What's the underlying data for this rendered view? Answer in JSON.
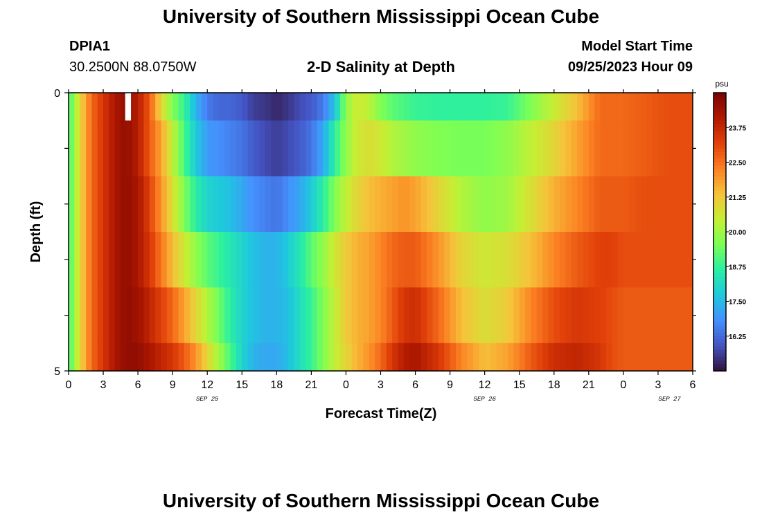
{
  "page": {
    "title_top": "University of Southern Mississippi Ocean Cube",
    "title_bottom": "University of Southern Mississippi Ocean Cube",
    "station_id": "DPIA1",
    "station_coords": "30.2500N  88.0750W",
    "plot_title": "2-D Salinity at Depth",
    "model_start_label": "Model Start Time",
    "model_start_value": "09/25/2023 Hour 09"
  },
  "chart_data": {
    "type": "heatmap",
    "title": "2-D Salinity at Depth",
    "xlabel": "Forecast Time(Z)",
    "ylabel": "Depth (ft)",
    "x_hours_from_sep25_00z": [
      0,
      54
    ],
    "x_tick_labels": [
      "0",
      "3",
      "6",
      "9",
      "12",
      "15",
      "18",
      "21",
      "0",
      "3",
      "6",
      "9",
      "12",
      "15",
      "18",
      "21",
      "0",
      "3",
      "6"
    ],
    "date_labels": [
      "SEP 25",
      "SEP 26",
      "SEP 27"
    ],
    "y_tick_labels": [
      "0",
      "5"
    ],
    "ylim": [
      0,
      5
    ],
    "depth_levels_ft": [
      0.25,
      0.75,
      1.25,
      1.75,
      2.25,
      2.75,
      3.25,
      3.75,
      4.25,
      4.75
    ],
    "colorbar": {
      "units": "psu",
      "range": [
        15.0,
        25.0
      ],
      "tick_labels": [
        "23.75",
        "22.50",
        "21.25",
        "20.00",
        "18.75",
        "17.50",
        "16.25"
      ],
      "tick_values": [
        23.75,
        22.5,
        21.25,
        20.0,
        18.75,
        17.5,
        16.25
      ]
    },
    "salinity_profiles_psu": {
      "hours": [
        0,
        1,
        2,
        3,
        4,
        5,
        6,
        7,
        8,
        9,
        10,
        11,
        12,
        13,
        14,
        15,
        16,
        17,
        18,
        19,
        20,
        21,
        22,
        23,
        24,
        25,
        26,
        27,
        28,
        29,
        30,
        32,
        34,
        36,
        38,
        40,
        42,
        44,
        46,
        47,
        48,
        50,
        52,
        54
      ],
      "depth_band_0_to_0_5ft": [
        18.8,
        21.0,
        22.6,
        23.4,
        24.2,
        24.6,
        24.0,
        22.8,
        21.0,
        19.6,
        18.8,
        17.4,
        16.5,
        16.2,
        16.2,
        16.0,
        15.6,
        15.5,
        15.3,
        15.5,
        15.8,
        16.0,
        16.5,
        17.6,
        19.8,
        20.6,
        20.3,
        19.6,
        19.2,
        19.0,
        18.8,
        18.7,
        18.7,
        18.7,
        18.8,
        19.6,
        20.5,
        21.4,
        22.6,
        22.6,
        22.6,
        22.8,
        23.0,
        23.0
      ],
      "depth_band_0_5_to_1_5ft": [
        18.8,
        21.0,
        22.6,
        23.4,
        24.2,
        24.6,
        24.0,
        22.8,
        21.8,
        20.4,
        19.0,
        17.8,
        17.0,
        16.8,
        16.6,
        16.4,
        16.0,
        15.8,
        15.6,
        15.8,
        16.0,
        16.4,
        17.2,
        18.6,
        19.8,
        20.6,
        20.8,
        20.6,
        20.2,
        20.0,
        19.8,
        19.6,
        19.5,
        19.5,
        19.8,
        20.4,
        21.0,
        21.8,
        22.6,
        22.6,
        22.6,
        22.8,
        23.0,
        23.0
      ],
      "depth_band_1_5_to_2_5ft": [
        18.8,
        21.0,
        22.6,
        23.4,
        24.2,
        24.6,
        24.2,
        23.2,
        22.0,
        20.8,
        19.6,
        18.6,
        18.0,
        17.8,
        17.6,
        17.2,
        16.8,
        16.6,
        16.4,
        16.8,
        17.2,
        17.8,
        18.6,
        19.6,
        20.4,
        21.0,
        21.4,
        21.6,
        21.8,
        22.0,
        21.8,
        21.0,
        20.2,
        19.8,
        20.0,
        20.8,
        21.6,
        22.2,
        22.8,
        22.8,
        22.8,
        23.0,
        23.0,
        23.0
      ],
      "depth_band_2_5_to_3_5ft": [
        18.8,
        21.0,
        22.6,
        23.4,
        24.2,
        24.6,
        24.2,
        23.4,
        22.4,
        21.4,
        20.6,
        19.8,
        19.2,
        18.8,
        18.4,
        18.0,
        17.6,
        17.4,
        17.4,
        17.8,
        18.4,
        19.2,
        19.8,
        20.6,
        21.2,
        21.6,
        21.8,
        22.2,
        22.6,
        22.8,
        22.8,
        22.0,
        21.0,
        20.6,
        20.8,
        21.4,
        22.2,
        22.8,
        23.2,
        23.2,
        23.0,
        23.0,
        23.0,
        23.0
      ],
      "depth_band_3_5_to_4_5ft": [
        18.8,
        21.0,
        22.6,
        23.4,
        24.2,
        24.6,
        24.4,
        23.8,
        23.2,
        22.6,
        21.8,
        21.0,
        20.2,
        19.4,
        18.6,
        18.0,
        17.6,
        17.4,
        17.4,
        17.6,
        18.2,
        18.8,
        19.6,
        20.4,
        21.2,
        21.6,
        21.8,
        22.2,
        22.8,
        23.4,
        23.6,
        22.6,
        21.4,
        20.8,
        21.2,
        22.2,
        23.0,
        23.4,
        23.2,
        23.0,
        22.8,
        22.8,
        22.8,
        22.8
      ],
      "depth_band_4_5_to_5ft": [
        18.8,
        21.0,
        22.6,
        23.4,
        24.2,
        24.6,
        24.6,
        24.2,
        23.8,
        23.4,
        22.8,
        22.0,
        21.0,
        20.0,
        19.0,
        18.0,
        17.4,
        17.2,
        17.2,
        17.6,
        18.2,
        18.8,
        19.6,
        20.4,
        21.0,
        21.6,
        22.0,
        22.6,
        23.4,
        24.0,
        24.2,
        23.4,
        22.2,
        21.4,
        21.8,
        22.8,
        23.6,
        23.8,
        23.4,
        23.0,
        22.8,
        22.8,
        22.8,
        22.8
      ]
    },
    "colors": {
      "scale": [
        "#30123b",
        "#4454c4",
        "#4490fe",
        "#1fc8de",
        "#29efa2",
        "#7cff55",
        "#c5ef33",
        "#f6c23a",
        "#fb8022",
        "#e14009",
        "#b11901",
        "#7a0403"
      ]
    }
  }
}
